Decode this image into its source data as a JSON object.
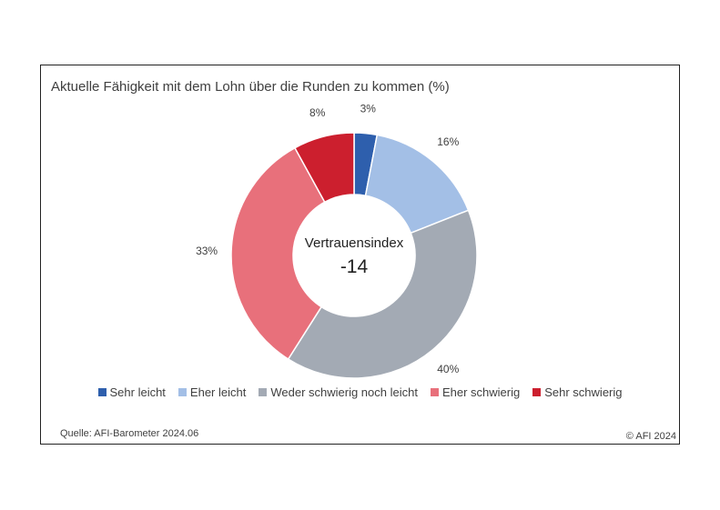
{
  "chart_data": {
    "type": "pie",
    "title": "Aktuelle Fähigkeit mit dem Lohn über die Runden zu kommen (%)",
    "categories": [
      "Sehr leicht",
      "Eher leicht",
      "Weder schwierig noch leicht",
      "Eher schwierig",
      "Sehr schwierig"
    ],
    "values": [
      3,
      16,
      40,
      33,
      8
    ],
    "value_labels": [
      "3%",
      "16%",
      "40%",
      "33%",
      "8%"
    ],
    "colors": [
      "#2e5fad",
      "#a3bfe6",
      "#a3aab4",
      "#e8707b",
      "#cc1f2e"
    ],
    "center_label": "Vertrauensindex",
    "center_value": "-14",
    "legend_position": "bottom"
  },
  "source": "Quelle: AFI-Barometer 2024.06",
  "copyright": "© AFI 2024"
}
